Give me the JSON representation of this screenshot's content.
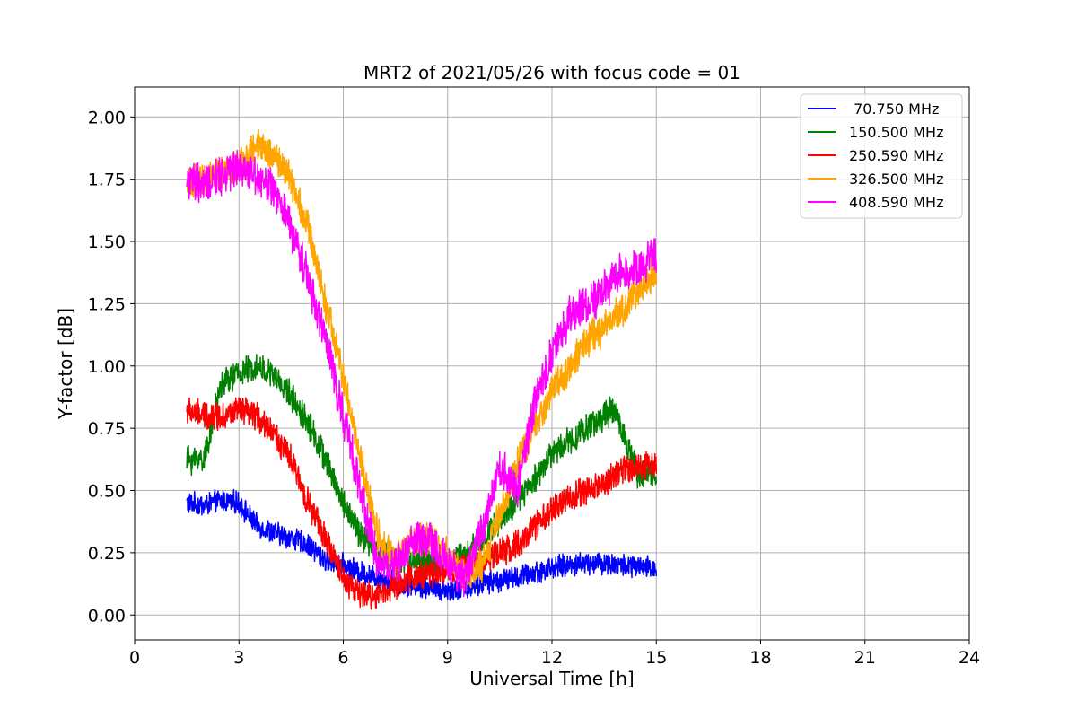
{
  "chart_data": {
    "type": "line",
    "title": "MRT2 of 2021/05/26 with focus code = 01",
    "xlabel": "Universal Time [h]",
    "ylabel": "Y-factor [dB]",
    "xlim": [
      0,
      24
    ],
    "ylim": [
      -0.1,
      2.12
    ],
    "xticks": [
      0,
      3,
      6,
      9,
      12,
      15,
      18,
      21,
      24
    ],
    "yticks": [
      0.0,
      0.25,
      0.5,
      0.75,
      1.0,
      1.25,
      1.5,
      1.75,
      2.0
    ],
    "xtick_labels": [
      "0",
      "3",
      "6",
      "9",
      "12",
      "15",
      "18",
      "21",
      "24"
    ],
    "ytick_labels": [
      "0.00",
      "0.25",
      "0.50",
      "0.75",
      "1.00",
      "1.25",
      "1.50",
      "1.75",
      "2.00"
    ],
    "grid": true,
    "legend_position": "top-right",
    "series": [
      {
        "name": " 70.750 MHz",
        "color": "#0000ff",
        "noise": 0.04,
        "x": [
          1.5,
          2.0,
          2.5,
          3.0,
          3.5,
          4.0,
          4.5,
          5.0,
          5.5,
          6.0,
          6.5,
          7.0,
          7.5,
          8.0,
          8.5,
          9.0,
          9.5,
          10.0,
          10.5,
          11.0,
          11.5,
          12.0,
          12.5,
          13.0,
          13.5,
          14.0,
          14.5,
          15.0
        ],
        "y": [
          0.45,
          0.44,
          0.46,
          0.45,
          0.36,
          0.33,
          0.31,
          0.28,
          0.22,
          0.2,
          0.17,
          0.15,
          0.13,
          0.12,
          0.11,
          0.1,
          0.11,
          0.13,
          0.14,
          0.15,
          0.17,
          0.19,
          0.2,
          0.21,
          0.21,
          0.2,
          0.19,
          0.19
        ]
      },
      {
        "name": "150.500 MHz",
        "color": "#008000",
        "noise": 0.05,
        "x": [
          1.5,
          2.0,
          2.5,
          3.0,
          3.5,
          4.0,
          4.5,
          5.0,
          5.5,
          6.0,
          6.5,
          7.0,
          7.5,
          8.0,
          8.5,
          9.0,
          9.5,
          10.0,
          10.5,
          11.0,
          11.5,
          12.0,
          12.5,
          13.0,
          13.5,
          13.8,
          14.5,
          15.0
        ],
        "y": [
          0.62,
          0.63,
          0.93,
          0.97,
          1.0,
          0.96,
          0.88,
          0.77,
          0.62,
          0.45,
          0.32,
          0.25,
          0.22,
          0.22,
          0.21,
          0.21,
          0.24,
          0.3,
          0.38,
          0.45,
          0.55,
          0.65,
          0.7,
          0.75,
          0.8,
          0.83,
          0.55,
          0.58
        ]
      },
      {
        "name": "250.590 MHz",
        "color": "#ff0000",
        "noise": 0.05,
        "x": [
          1.5,
          2.0,
          2.5,
          3.0,
          3.5,
          4.0,
          4.5,
          5.0,
          5.5,
          6.0,
          6.5,
          7.0,
          7.5,
          8.0,
          8.5,
          9.0,
          9.5,
          10.0,
          10.5,
          11.0,
          11.5,
          12.0,
          12.5,
          13.0,
          13.5,
          14.0,
          14.5,
          15.0
        ],
        "y": [
          0.82,
          0.8,
          0.8,
          0.82,
          0.8,
          0.73,
          0.62,
          0.45,
          0.3,
          0.15,
          0.08,
          0.08,
          0.12,
          0.15,
          0.17,
          0.18,
          0.2,
          0.22,
          0.25,
          0.28,
          0.35,
          0.42,
          0.47,
          0.5,
          0.53,
          0.58,
          0.6,
          0.6
        ]
      },
      {
        "name": "326.500 MHz",
        "color": "#ffa500",
        "noise": 0.06,
        "x": [
          1.5,
          2.0,
          2.5,
          3.0,
          3.5,
          4.0,
          4.5,
          5.0,
          5.5,
          6.0,
          6.5,
          7.0,
          7.5,
          8.0,
          8.5,
          9.0,
          9.5,
          10.0,
          10.5,
          11.0,
          11.5,
          12.0,
          12.5,
          13.0,
          13.5,
          14.0,
          14.5,
          15.0
        ],
        "y": [
          1.72,
          1.75,
          1.78,
          1.8,
          1.88,
          1.85,
          1.75,
          1.55,
          1.25,
          0.95,
          0.62,
          0.32,
          0.22,
          0.3,
          0.3,
          0.24,
          0.15,
          0.2,
          0.4,
          0.6,
          0.75,
          0.9,
          1.0,
          1.1,
          1.15,
          1.22,
          1.3,
          1.38
        ]
      },
      {
        "name": "408.590 MHz",
        "color": "#ff00ff",
        "noise": 0.07,
        "x": [
          1.5,
          2.0,
          2.5,
          3.0,
          3.5,
          4.0,
          4.5,
          5.0,
          5.5,
          6.0,
          6.5,
          7.0,
          7.5,
          8.0,
          8.5,
          9.0,
          9.5,
          10.0,
          10.5,
          11.0,
          11.5,
          12.0,
          12.5,
          13.0,
          13.5,
          14.0,
          14.5,
          15.0
        ],
        "y": [
          1.75,
          1.72,
          1.77,
          1.8,
          1.77,
          1.7,
          1.55,
          1.35,
          1.1,
          0.8,
          0.5,
          0.2,
          0.2,
          0.3,
          0.3,
          0.2,
          0.15,
          0.35,
          0.6,
          0.5,
          0.85,
          1.05,
          1.2,
          1.25,
          1.3,
          1.38,
          1.4,
          1.45
        ]
      }
    ]
  }
}
